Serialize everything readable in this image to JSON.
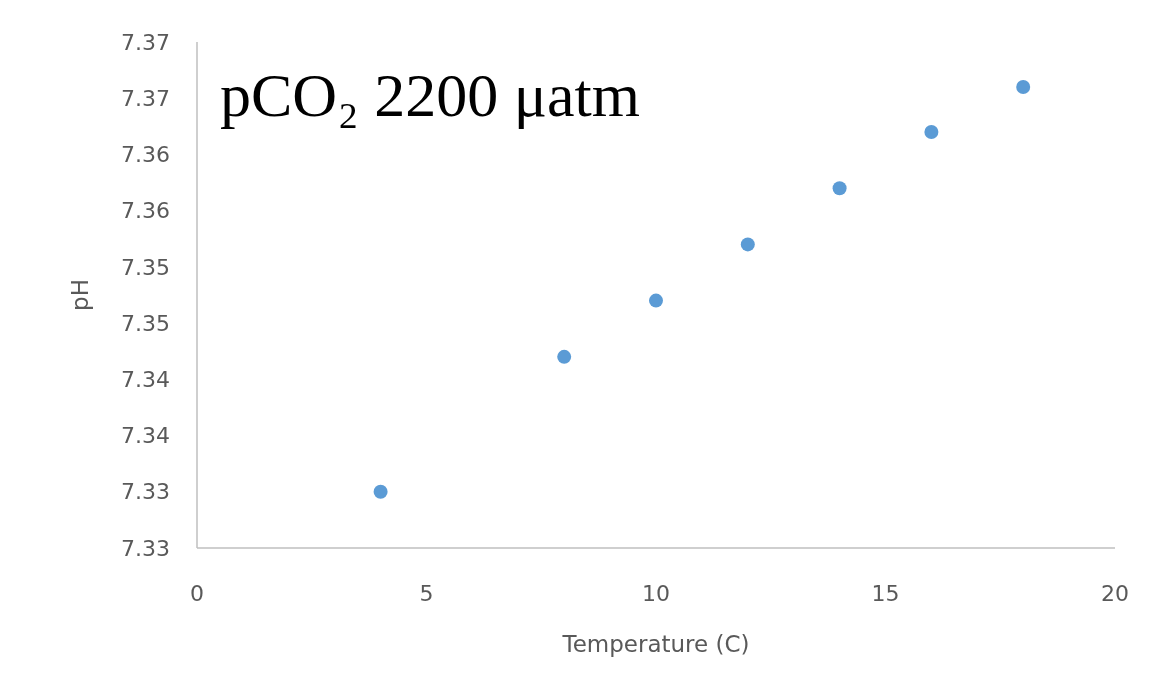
{
  "chart_data": {
    "type": "scatter",
    "title": "pCO₂ 2200 μatm",
    "xlabel": "Temperature (C)",
    "ylabel": "pH",
    "x": [
      4,
      8,
      10,
      12,
      14,
      16,
      18
    ],
    "series": [
      {
        "color": "#5b9bd5",
        "values": [
          7.33,
          7.342,
          7.347,
          7.352,
          7.357,
          7.362,
          7.366
        ]
      }
    ],
    "xlim": [
      0,
      20
    ],
    "xticks": [
      0,
      5,
      10,
      15,
      20
    ],
    "ylim": [
      7.325,
      7.37
    ],
    "yticks": [
      {
        "value": 7.325,
        "label": "7.33"
      },
      {
        "value": 7.33,
        "label": "7.33"
      },
      {
        "value": 7.335,
        "label": "7.34"
      },
      {
        "value": 7.34,
        "label": "7.34"
      },
      {
        "value": 7.345,
        "label": "7.35"
      },
      {
        "value": 7.35,
        "label": "7.35"
      },
      {
        "value": 7.355,
        "label": "7.36"
      },
      {
        "value": 7.36,
        "label": "7.36"
      },
      {
        "value": 7.365,
        "label": "7.37"
      },
      {
        "value": 7.37,
        "label": "7.37"
      }
    ],
    "grid": false,
    "marker": "circle"
  }
}
